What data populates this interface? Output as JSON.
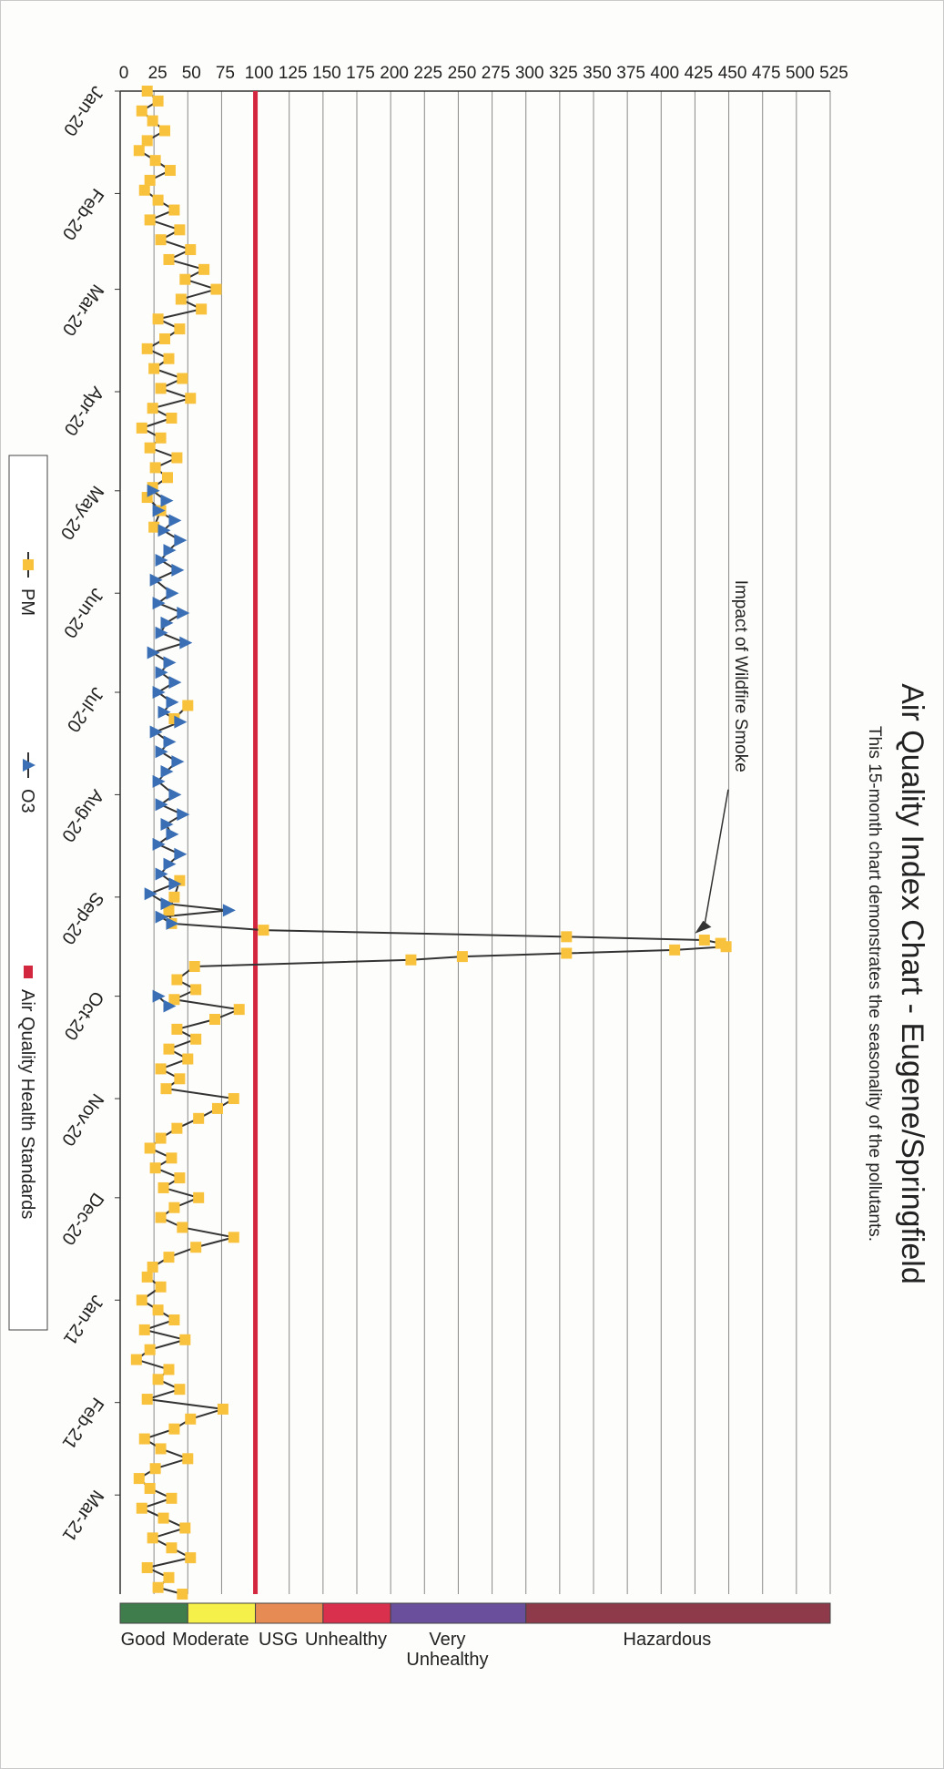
{
  "chart_data": {
    "type": "line",
    "title": "Air Quality Index Chart - Eugene/Springfield",
    "subtitle": "This 15-month chart demonstrates the seasonality of the pollutants.",
    "xlabel": "",
    "ylabel": "",
    "x_tick_labels": [
      "Jan-20",
      "Feb-20",
      "Mar-20",
      "Apr-20",
      "May-20",
      "Jun-20",
      "Jul-20",
      "Aug-20",
      "Sep-20",
      "Oct-20",
      "Nov-20",
      "Dec-20",
      "Jan-21",
      "Feb-21",
      "Mar-21"
    ],
    "x_range": [
      "2020-01-01",
      "2021-03-31"
    ],
    "ylim": [
      0,
      525
    ],
    "y_ticks": [
      0,
      25,
      50,
      75,
      100,
      125,
      150,
      175,
      200,
      225,
      250,
      275,
      300,
      325,
      350,
      375,
      400,
      425,
      450,
      475,
      500,
      525
    ],
    "grid": "horizontal",
    "threshold": {
      "name": "Air Quality Health Standards",
      "value": 100,
      "color": "#d3263f"
    },
    "annotation": {
      "text": "Impact of Wildfire Smoke",
      "x": "2020-09-12",
      "y": 425
    },
    "series": [
      {
        "name": "PM",
        "marker": "square",
        "color": "#f9c23c",
        "line_color": "#333333",
        "points": [
          [
            "2020-01-01",
            20
          ],
          [
            "2020-01-04",
            28
          ],
          [
            "2020-01-07",
            16
          ],
          [
            "2020-01-10",
            24
          ],
          [
            "2020-01-13",
            33
          ],
          [
            "2020-01-16",
            20
          ],
          [
            "2020-01-19",
            14
          ],
          [
            "2020-01-22",
            26
          ],
          [
            "2020-01-25",
            37
          ],
          [
            "2020-01-28",
            22
          ],
          [
            "2020-01-31",
            18
          ],
          [
            "2020-02-03",
            28
          ],
          [
            "2020-02-06",
            40
          ],
          [
            "2020-02-09",
            22
          ],
          [
            "2020-02-12",
            44
          ],
          [
            "2020-02-15",
            30
          ],
          [
            "2020-02-18",
            52
          ],
          [
            "2020-02-21",
            36
          ],
          [
            "2020-02-24",
            62
          ],
          [
            "2020-02-27",
            48
          ],
          [
            "2020-03-01",
            71
          ],
          [
            "2020-03-04",
            45
          ],
          [
            "2020-03-07",
            60
          ],
          [
            "2020-03-10",
            28
          ],
          [
            "2020-03-13",
            44
          ],
          [
            "2020-03-16",
            33
          ],
          [
            "2020-03-19",
            20
          ],
          [
            "2020-03-22",
            36
          ],
          [
            "2020-03-25",
            25
          ],
          [
            "2020-03-28",
            46
          ],
          [
            "2020-03-31",
            30
          ],
          [
            "2020-04-03",
            52
          ],
          [
            "2020-04-06",
            24
          ],
          [
            "2020-04-09",
            38
          ],
          [
            "2020-04-12",
            16
          ],
          [
            "2020-04-15",
            30
          ],
          [
            "2020-04-18",
            22
          ],
          [
            "2020-04-21",
            42
          ],
          [
            "2020-04-24",
            26
          ],
          [
            "2020-04-27",
            35
          ],
          [
            "2020-04-30",
            24
          ],
          [
            "2020-05-03",
            20
          ],
          [
            "2020-05-07",
            30
          ],
          [
            "2020-05-12",
            25
          ],
          [
            "2020-07-05",
            50
          ],
          [
            "2020-07-09",
            40
          ],
          [
            "2020-08-27",
            44
          ],
          [
            "2020-09-01",
            40
          ],
          [
            "2020-09-05",
            36
          ],
          [
            "2020-09-09",
            38
          ],
          [
            "2020-09-11",
            106
          ],
          [
            "2020-09-13",
            330
          ],
          [
            "2020-09-14",
            432
          ],
          [
            "2020-09-15",
            444
          ],
          [
            "2020-09-16",
            448
          ],
          [
            "2020-09-17",
            410
          ],
          [
            "2020-09-18",
            330
          ],
          [
            "2020-09-19",
            253
          ],
          [
            "2020-09-20",
            215
          ],
          [
            "2020-09-22",
            55
          ],
          [
            "2020-09-26",
            42
          ],
          [
            "2020-09-29",
            56
          ],
          [
            "2020-10-02",
            40
          ],
          [
            "2020-10-05",
            88
          ],
          [
            "2020-10-08",
            70
          ],
          [
            "2020-10-11",
            42
          ],
          [
            "2020-10-14",
            56
          ],
          [
            "2020-10-17",
            36
          ],
          [
            "2020-10-20",
            50
          ],
          [
            "2020-10-23",
            30
          ],
          [
            "2020-10-26",
            44
          ],
          [
            "2020-10-29",
            34
          ],
          [
            "2020-11-01",
            84
          ],
          [
            "2020-11-04",
            72
          ],
          [
            "2020-11-07",
            58
          ],
          [
            "2020-11-10",
            42
          ],
          [
            "2020-11-13",
            30
          ],
          [
            "2020-11-16",
            22
          ],
          [
            "2020-11-19",
            38
          ],
          [
            "2020-11-22",
            26
          ],
          [
            "2020-11-25",
            44
          ],
          [
            "2020-11-28",
            32
          ],
          [
            "2020-12-01",
            58
          ],
          [
            "2020-12-04",
            40
          ],
          [
            "2020-12-07",
            30
          ],
          [
            "2020-12-10",
            46
          ],
          [
            "2020-12-13",
            84
          ],
          [
            "2020-12-16",
            56
          ],
          [
            "2020-12-19",
            36
          ],
          [
            "2020-12-22",
            24
          ],
          [
            "2020-12-25",
            20
          ],
          [
            "2020-12-28",
            30
          ],
          [
            "2021-01-01",
            16
          ],
          [
            "2021-01-04",
            28
          ],
          [
            "2021-01-07",
            40
          ],
          [
            "2021-01-10",
            18
          ],
          [
            "2021-01-13",
            48
          ],
          [
            "2021-01-16",
            22
          ],
          [
            "2021-01-19",
            12
          ],
          [
            "2021-01-22",
            36
          ],
          [
            "2021-01-25",
            28
          ],
          [
            "2021-01-28",
            44
          ],
          [
            "2021-01-31",
            20
          ],
          [
            "2021-02-03",
            76
          ],
          [
            "2021-02-06",
            52
          ],
          [
            "2021-02-09",
            40
          ],
          [
            "2021-02-12",
            18
          ],
          [
            "2021-02-15",
            30
          ],
          [
            "2021-02-18",
            50
          ],
          [
            "2021-02-21",
            26
          ],
          [
            "2021-02-24",
            14
          ],
          [
            "2021-02-27",
            22
          ],
          [
            "2021-03-02",
            38
          ],
          [
            "2021-03-05",
            16
          ],
          [
            "2021-03-08",
            32
          ],
          [
            "2021-03-11",
            48
          ],
          [
            "2021-03-14",
            24
          ],
          [
            "2021-03-17",
            38
          ],
          [
            "2021-03-20",
            52
          ],
          [
            "2021-03-23",
            20
          ],
          [
            "2021-03-26",
            36
          ],
          [
            "2021-03-29",
            28
          ],
          [
            "2021-03-31",
            46
          ]
        ]
      },
      {
        "name": "O3",
        "marker": "triangle",
        "color": "#3a6fb5",
        "line_color": "#333333",
        "points": [
          [
            "2020-05-01",
            24
          ],
          [
            "2020-05-04",
            34
          ],
          [
            "2020-05-07",
            28
          ],
          [
            "2020-05-10",
            40
          ],
          [
            "2020-05-13",
            32
          ],
          [
            "2020-05-16",
            44
          ],
          [
            "2020-05-19",
            36
          ],
          [
            "2020-05-22",
            30
          ],
          [
            "2020-05-25",
            42
          ],
          [
            "2020-05-28",
            26
          ],
          [
            "2020-06-01",
            38
          ],
          [
            "2020-06-04",
            28
          ],
          [
            "2020-06-07",
            46
          ],
          [
            "2020-06-10",
            34
          ],
          [
            "2020-06-13",
            30
          ],
          [
            "2020-06-16",
            48
          ],
          [
            "2020-06-19",
            24
          ],
          [
            "2020-06-22",
            36
          ],
          [
            "2020-06-25",
            30
          ],
          [
            "2020-06-28",
            40
          ],
          [
            "2020-07-01",
            28
          ],
          [
            "2020-07-04",
            38
          ],
          [
            "2020-07-07",
            32
          ],
          [
            "2020-07-10",
            44
          ],
          [
            "2020-07-13",
            26
          ],
          [
            "2020-07-16",
            36
          ],
          [
            "2020-07-19",
            30
          ],
          [
            "2020-07-22",
            42
          ],
          [
            "2020-07-25",
            34
          ],
          [
            "2020-07-28",
            28
          ],
          [
            "2020-08-01",
            40
          ],
          [
            "2020-08-04",
            30
          ],
          [
            "2020-08-07",
            46
          ],
          [
            "2020-08-10",
            34
          ],
          [
            "2020-08-13",
            38
          ],
          [
            "2020-08-16",
            28
          ],
          [
            "2020-08-19",
            44
          ],
          [
            "2020-08-22",
            36
          ],
          [
            "2020-08-25",
            30
          ],
          [
            "2020-08-28",
            40
          ],
          [
            "2020-08-31",
            22
          ],
          [
            "2020-09-03",
            34
          ],
          [
            "2020-09-05",
            80
          ],
          [
            "2020-09-07",
            30
          ],
          [
            "2020-09-09",
            38
          ],
          [
            "2020-10-01",
            28
          ],
          [
            "2020-10-04",
            36
          ]
        ]
      }
    ],
    "legend": {
      "placement": "left",
      "entries": [
        {
          "label": "PM",
          "marker": "square",
          "color": "#f9c23c"
        },
        {
          "label": "O3",
          "marker": "triangle",
          "color": "#3a6fb5"
        },
        {
          "label": "Air Quality Health Standards",
          "marker": "bar",
          "color": "#d3263f"
        }
      ]
    },
    "aqi_categories": [
      {
        "label": "Good",
        "range": [
          0,
          50
        ],
        "color": "#3f7d4c"
      },
      {
        "label": "Moderate",
        "range": [
          50,
          100
        ],
        "color": "#f6f04a"
      },
      {
        "label": "USG",
        "range": [
          100,
          150
        ],
        "color": "#e78b55"
      },
      {
        "label": "Unhealthy",
        "range": [
          150,
          200
        ],
        "color": "#d8304d"
      },
      {
        "label": "Very\nUnhealthy",
        "range": [
          200,
          300
        ],
        "color": "#6a509c"
      },
      {
        "label": "Hazardous",
        "range": [
          300,
          525
        ],
        "color": "#8e3a4b"
      }
    ]
  }
}
